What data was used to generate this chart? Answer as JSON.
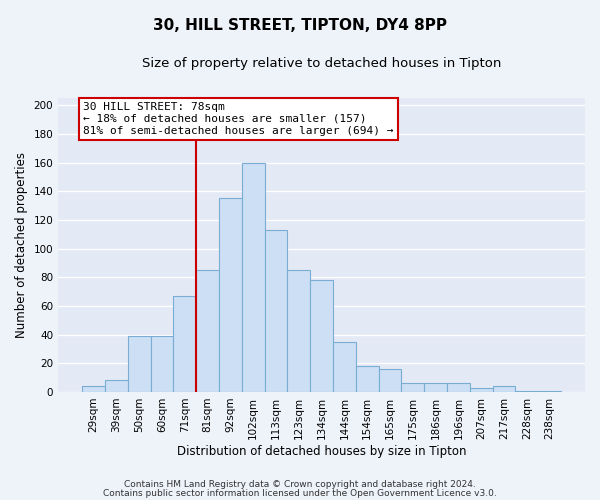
{
  "title": "30, HILL STREET, TIPTON, DY4 8PP",
  "subtitle": "Size of property relative to detached houses in Tipton",
  "xlabel": "Distribution of detached houses by size in Tipton",
  "ylabel": "Number of detached properties",
  "bar_labels": [
    "29sqm",
    "39sqm",
    "50sqm",
    "60sqm",
    "71sqm",
    "81sqm",
    "92sqm",
    "102sqm",
    "113sqm",
    "123sqm",
    "134sqm",
    "144sqm",
    "154sqm",
    "165sqm",
    "175sqm",
    "186sqm",
    "196sqm",
    "207sqm",
    "217sqm",
    "228sqm",
    "238sqm"
  ],
  "bar_values": [
    4,
    8,
    39,
    39,
    67,
    85,
    135,
    160,
    113,
    85,
    78,
    35,
    18,
    16,
    6,
    6,
    6,
    3,
    4,
    1,
    1
  ],
  "bar_color": "#ccdff4",
  "bar_edge_color": "#7aadd4",
  "vline_index": 5,
  "vline_color": "#cc0000",
  "annotation_line1": "30 HILL STREET: 78sqm",
  "annotation_line2": "← 18% of detached houses are smaller (157)",
  "annotation_line3": "81% of semi-detached houses are larger (694) →",
  "annotation_box_color": "#ffffff",
  "annotation_box_edge": "#cc0000",
  "ylim": [
    0,
    205
  ],
  "yticks": [
    0,
    20,
    40,
    60,
    80,
    100,
    120,
    140,
    160,
    180,
    200
  ],
  "footer1": "Contains HM Land Registry data © Crown copyright and database right 2024.",
  "footer2": "Contains public sector information licensed under the Open Government Licence v3.0.",
  "background_color": "#eef2f9",
  "plot_background": "#e4eaf5",
  "grid_color": "#ffffff",
  "title_fontsize": 11,
  "subtitle_fontsize": 9.5,
  "axis_label_fontsize": 8.5,
  "tick_fontsize": 7.5,
  "annotation_fontsize": 8,
  "footer_fontsize": 6.5
}
